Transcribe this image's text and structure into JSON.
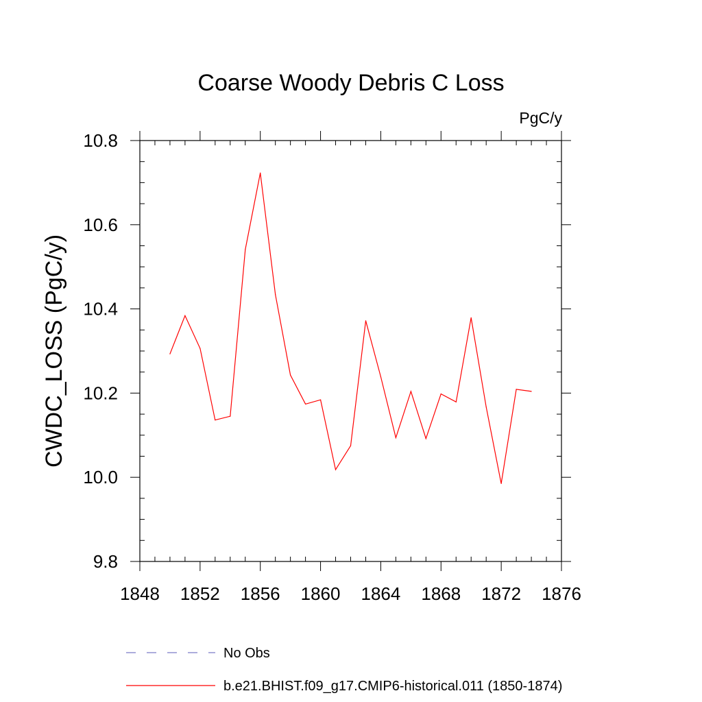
{
  "chart_data": {
    "type": "line",
    "title": "Coarse Woody Debris C Loss",
    "units_label": "PgC/y",
    "xlabel": "",
    "ylabel": "CWDC_LOSS  (PgC/y)",
    "xlim": [
      1848,
      1876
    ],
    "ylim": [
      9.8,
      10.8
    ],
    "x_ticks": [
      1848,
      1852,
      1856,
      1860,
      1864,
      1868,
      1872,
      1876
    ],
    "x_tick_labels": [
      "1848",
      "1852",
      "1856",
      "1860",
      "1864",
      "1868",
      "1872",
      "1876"
    ],
    "y_ticks": [
      9.8,
      10.0,
      10.2,
      10.4,
      10.6,
      10.8
    ],
    "y_tick_labels": [
      "9.8",
      "10.0",
      "10.2",
      "10.4",
      "10.6",
      "10.8"
    ],
    "x_minor_step": 1,
    "y_minor_step": 0.05,
    "grid": false,
    "legend_position": "bottom",
    "series": [
      {
        "name": "b.e21.BHIST.f09_g17.CMIP6-historical.011 (1850-1874)",
        "color": "#ff0000",
        "style": "solid",
        "x": [
          1850,
          1851,
          1852,
          1853,
          1854,
          1855,
          1856,
          1857,
          1858,
          1859,
          1860,
          1861,
          1862,
          1863,
          1864,
          1865,
          1866,
          1867,
          1868,
          1869,
          1870,
          1871,
          1872,
          1873,
          1874
        ],
        "y": [
          10.293,
          10.384,
          10.306,
          10.136,
          10.145,
          10.541,
          10.723,
          10.434,
          10.243,
          10.174,
          10.184,
          10.018,
          10.075,
          10.372,
          10.239,
          10.094,
          10.204,
          10.092,
          10.198,
          10.179,
          10.379,
          10.167,
          9.985,
          10.209,
          10.204
        ]
      }
    ],
    "legend": [
      {
        "label": "No Obs",
        "color": "#7b7bc8",
        "style": "dashed"
      },
      {
        "label": "b.e21.BHIST.f09_g17.CMIP6-historical.011 (1850-1874)",
        "color": "#ff0000",
        "style": "solid"
      }
    ]
  }
}
